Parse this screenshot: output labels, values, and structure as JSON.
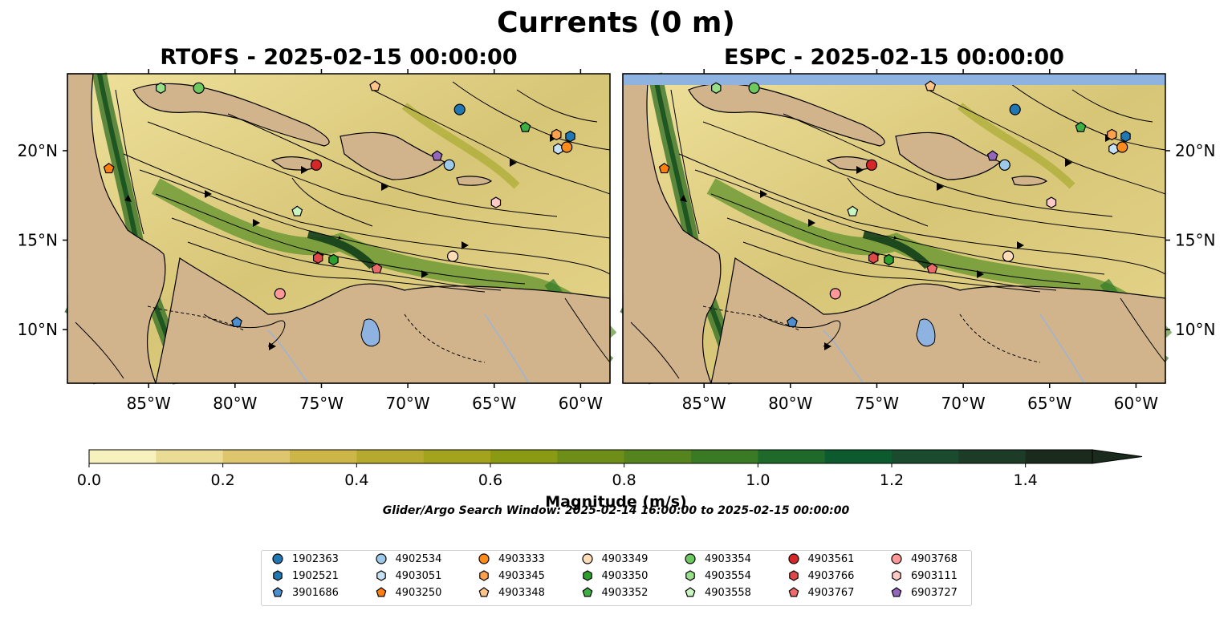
{
  "figure": {
    "suptitle": "Currents (0 m)",
    "left_title": "RTOFS - 2025-02-15 00:00:00",
    "right_title": "ESPC - 2025-02-15 00:00:00",
    "lon_ticks": [
      "85°W",
      "80°W",
      "75°W",
      "70°W",
      "65°W",
      "60°W"
    ],
    "lat_ticks": [
      "20°N",
      "15°N",
      "10°N"
    ],
    "colorbar_ticks": [
      "0.0",
      "0.2",
      "0.4",
      "0.6",
      "0.8",
      "1.0",
      "1.2",
      "1.4"
    ],
    "colorbar_label": "Magnitude (m/s)",
    "search_window": "Glider/Argo Search Window: 2025-02-14 16:00:00 to 2025-02-15 00:00:00"
  },
  "map_extent": {
    "lon_min": -89.7,
    "lon_max": -58.3,
    "lat_min": 7.0,
    "lat_max": 24.3
  },
  "colors": {
    "land": "#d2b48c",
    "water_low": "#f2e6a2",
    "water_mid": "#8f9e1a",
    "water_high": "#0f4f22",
    "no_data": "#8fb3e0",
    "colorbar": [
      "#f7f1bd",
      "#ebdc95",
      "#ddc66e",
      "#cdb648",
      "#b6aa2e",
      "#a3a31e",
      "#8a9a12",
      "#6f8e17",
      "#55841f",
      "#3b7a25",
      "#1f6a2b",
      "#0d5a2e",
      "#1a4b2f",
      "#1d3c27",
      "#1a2a1c"
    ]
  },
  "colorbar_range": [
    0,
    1.5
  ],
  "legend": [
    {
      "id": "1902363",
      "marker": "circle",
      "color": "#1f77b4"
    },
    {
      "id": "1902521",
      "marker": "hexagon",
      "color": "#1f77b4"
    },
    {
      "id": "3901686",
      "marker": "pentagon",
      "color": "#4c8fd0"
    },
    {
      "id": "4902534",
      "marker": "circle",
      "color": "#9ecae9"
    },
    {
      "id": "4903051",
      "marker": "hexagon",
      "color": "#c6e0f5"
    },
    {
      "id": "4903250",
      "marker": "pentagon",
      "color": "#ff7f0e"
    },
    {
      "id": "4903333",
      "marker": "circle",
      "color": "#ff8c1a"
    },
    {
      "id": "4903345",
      "marker": "hexagon",
      "color": "#ffa04d"
    },
    {
      "id": "4903348",
      "marker": "pentagon",
      "color": "#ffc48a"
    },
    {
      "id": "4903349",
      "marker": "circle",
      "color": "#ffdcb8"
    },
    {
      "id": "4903350",
      "marker": "hexagon",
      "color": "#2ca02c"
    },
    {
      "id": "4903352",
      "marker": "pentagon",
      "color": "#3cb043"
    },
    {
      "id": "4903354",
      "marker": "circle",
      "color": "#6dc95f"
    },
    {
      "id": "4903554",
      "marker": "hexagon",
      "color": "#98df8a"
    },
    {
      "id": "4903558",
      "marker": "pentagon",
      "color": "#c8f5c0"
    },
    {
      "id": "4903561",
      "marker": "circle",
      "color": "#d62728"
    },
    {
      "id": "4903766",
      "marker": "hexagon",
      "color": "#e04848"
    },
    {
      "id": "4903767",
      "marker": "pentagon",
      "color": "#ee6b6b"
    },
    {
      "id": "4903768",
      "marker": "circle",
      "color": "#ff9896"
    },
    {
      "id": "6903111",
      "marker": "hexagon",
      "color": "#ffc9c8"
    },
    {
      "id": "6903727",
      "marker": "pentagon",
      "color": "#9467bd"
    }
  ],
  "float_positions": [
    {
      "id": "1902363",
      "lon": -67.0,
      "lat": 22.3
    },
    {
      "id": "1902521",
      "lon": -60.6,
      "lat": 20.8
    },
    {
      "id": "3901686",
      "lon": -79.9,
      "lat": 10.4
    },
    {
      "id": "4902534",
      "lon": -67.6,
      "lat": 19.2
    },
    {
      "id": "4903051",
      "lon": -61.3,
      "lat": 20.1
    },
    {
      "id": "4903250",
      "lon": -87.3,
      "lat": 19.0
    },
    {
      "id": "4903333",
      "lon": -60.8,
      "lat": 20.2
    },
    {
      "id": "4903345",
      "lon": -61.4,
      "lat": 20.9
    },
    {
      "id": "4903348",
      "lon": -71.9,
      "lat": 23.6
    },
    {
      "id": "4903349",
      "lon": -67.4,
      "lat": 14.1
    },
    {
      "id": "4903350",
      "lon": -74.3,
      "lat": 13.9
    },
    {
      "id": "4903352",
      "lon": -63.2,
      "lat": 21.3
    },
    {
      "id": "4903354",
      "lon": -82.1,
      "lat": 23.5
    },
    {
      "id": "4903554",
      "lon": -84.3,
      "lat": 23.5
    },
    {
      "id": "4903558",
      "lon": -76.4,
      "lat": 16.6
    },
    {
      "id": "4903561",
      "lon": -75.3,
      "lat": 19.2
    },
    {
      "id": "4903766",
      "lon": -75.2,
      "lat": 14.0
    },
    {
      "id": "4903767",
      "lon": -71.8,
      "lat": 13.4
    },
    {
      "id": "4903768",
      "lon": -77.4,
      "lat": 12.0
    },
    {
      "id": "6903111",
      "lon": -64.9,
      "lat": 17.1
    },
    {
      "id": "6903727",
      "lon": -68.3,
      "lat": 19.7
    }
  ]
}
